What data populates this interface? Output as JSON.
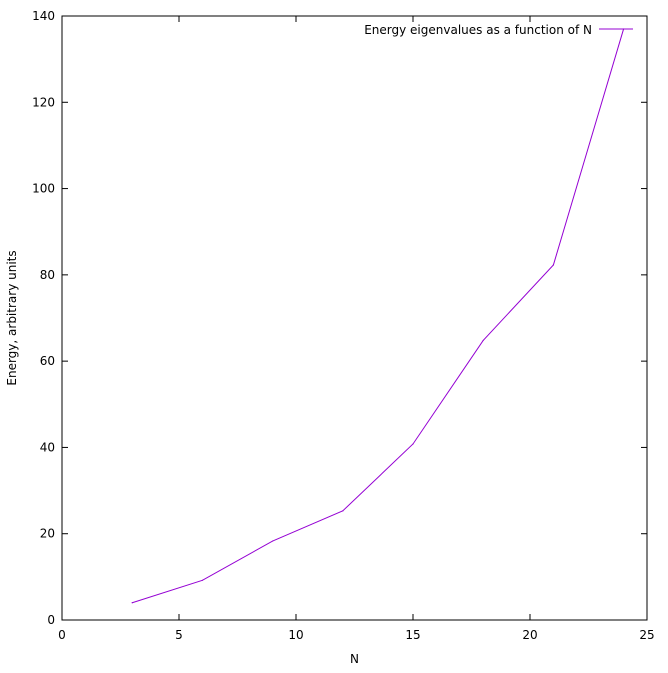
{
  "chart_data": {
    "type": "line",
    "title": "",
    "xlabel": "N",
    "ylabel": "Energy, arbitrary units",
    "xlim": [
      0,
      25
    ],
    "ylim": [
      0,
      140
    ],
    "xticks": [
      0,
      5,
      10,
      15,
      20,
      25
    ],
    "yticks": [
      0,
      20,
      40,
      60,
      80,
      100,
      120,
      140
    ],
    "grid": false,
    "legend_position": "top-right",
    "series": [
      {
        "name": "Energy eigenvalues as a function of N",
        "color": "#9400d3",
        "x": [
          3,
          6,
          9,
          12,
          15,
          18,
          21,
          24
        ],
        "y": [
          4,
          9.2,
          18.3,
          25.3,
          40.8,
          64.8,
          82.3,
          137
        ]
      }
    ]
  }
}
